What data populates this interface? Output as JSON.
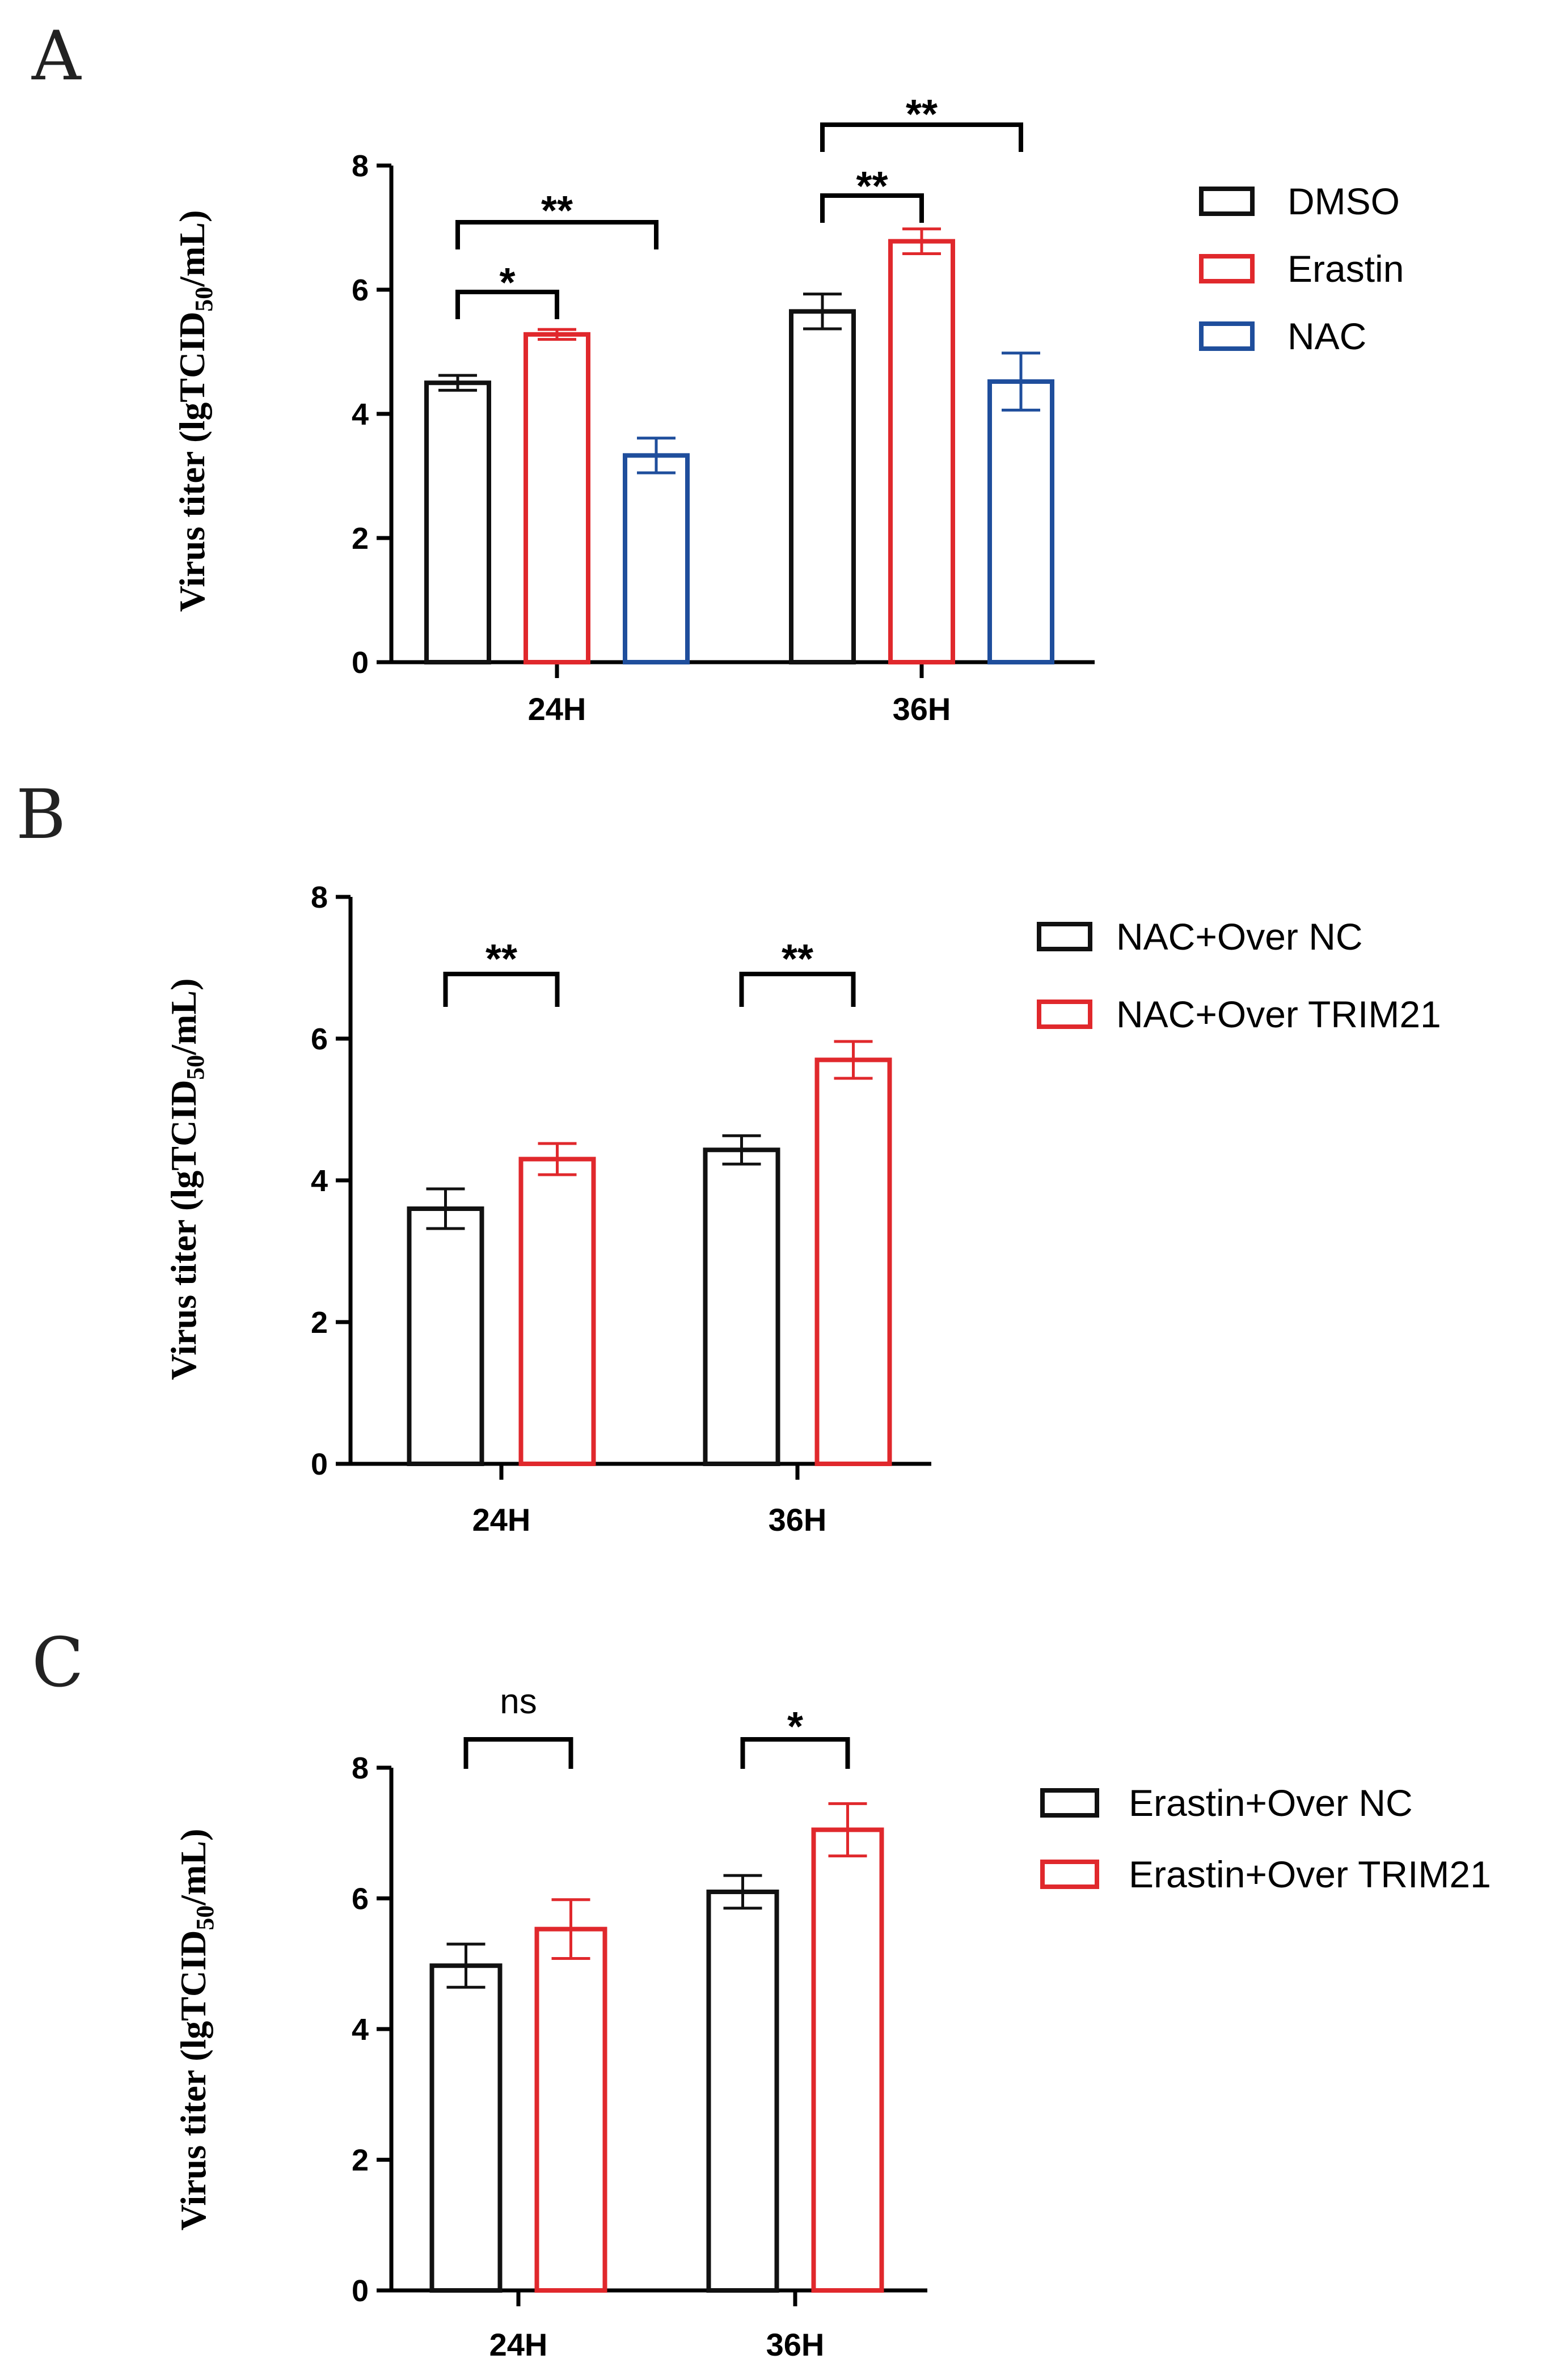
{
  "colors": {
    "black": "#111111",
    "red": "#e0282c",
    "blue": "#1f4e9c"
  },
  "chart_data": [
    {
      "panel": "A",
      "type": "bar",
      "categories": [
        "24H",
        "36H"
      ],
      "ylabel_main": "Virus titer (lgTCID",
      "ylabel_sub": "50",
      "ylabel_end": "/mL)",
      "ylim": [
        0,
        8
      ],
      "yticks": [
        "0",
        "2",
        "4",
        "6",
        "8"
      ],
      "series": [
        {
          "name": "DMSO",
          "color": "black",
          "values": [
            4.5,
            5.65
          ],
          "errors": [
            0.12,
            0.28
          ]
        },
        {
          "name": "Erastin",
          "color": "red",
          "values": [
            5.28,
            6.78
          ],
          "errors": [
            0.08,
            0.2
          ]
        },
        {
          "name": "NAC",
          "color": "blue",
          "values": [
            3.33,
            4.52
          ],
          "errors": [
            0.28,
            0.46
          ]
        }
      ],
      "significance": [
        {
          "category": 0,
          "from": 0,
          "to": 1,
          "label": "*"
        },
        {
          "category": 0,
          "from": 0,
          "to": 2,
          "label": "**"
        },
        {
          "category": 1,
          "from": 0,
          "to": 1,
          "label": "**"
        },
        {
          "category": 1,
          "from": 0,
          "to": 2,
          "label": "**"
        }
      ]
    },
    {
      "panel": "B",
      "type": "bar",
      "categories": [
        "24H",
        "36H"
      ],
      "ylabel_main": "Virus titer (lgTCID",
      "ylabel_sub": "50",
      "ylabel_end": "/mL)",
      "ylim": [
        0,
        8
      ],
      "yticks": [
        "0",
        "2",
        "4",
        "6",
        "8"
      ],
      "series": [
        {
          "name": "NAC+Over NC",
          "color": "black",
          "values": [
            3.6,
            4.43
          ],
          "errors": [
            0.28,
            0.2
          ]
        },
        {
          "name": "NAC+Over TRIM21",
          "color": "red",
          "values": [
            4.3,
            5.7
          ],
          "errors": [
            0.22,
            0.26
          ]
        }
      ],
      "significance": [
        {
          "category": 0,
          "from": 0,
          "to": 1,
          "label": "**"
        },
        {
          "category": 1,
          "from": 0,
          "to": 1,
          "label": "**"
        }
      ]
    },
    {
      "panel": "C",
      "type": "bar",
      "categories": [
        "24H",
        "36H"
      ],
      "ylabel_main": "Virus titer (lgTCID",
      "ylabel_sub": "50",
      "ylabel_end": "/mL)",
      "ylim": [
        0,
        8
      ],
      "yticks": [
        "0",
        "2",
        "4",
        "6",
        "8"
      ],
      "series": [
        {
          "name": "Erastin+Over NC",
          "color": "black",
          "values": [
            4.97,
            6.1
          ],
          "errors": [
            0.33,
            0.25
          ]
        },
        {
          "name": "Erastin+Over TRIM21",
          "color": "red",
          "values": [
            5.53,
            7.05
          ],
          "errors": [
            0.45,
            0.4
          ]
        }
      ],
      "significance": [
        {
          "category": 0,
          "from": 0,
          "to": 1,
          "label": "ns"
        },
        {
          "category": 1,
          "from": 0,
          "to": 1,
          "label": "*"
        }
      ]
    }
  ]
}
